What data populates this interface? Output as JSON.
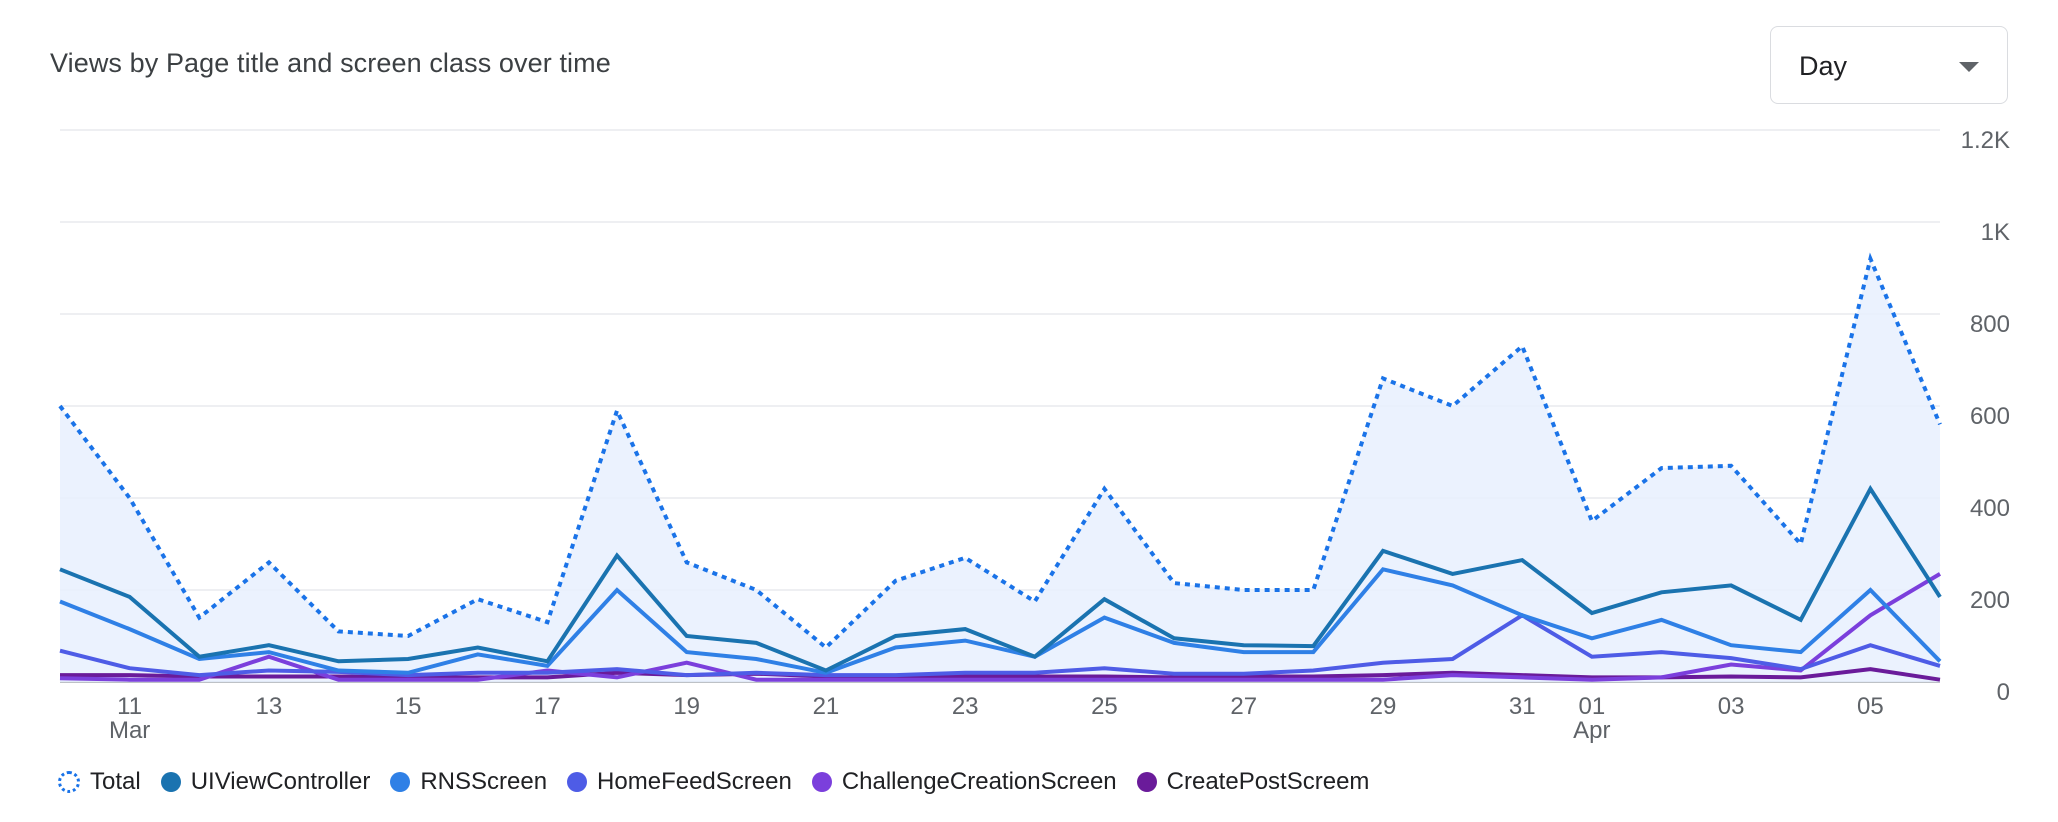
{
  "header": {
    "title": "Views by Page title and screen class over time"
  },
  "granularity": {
    "selected": "Day",
    "icon": "chevron-down-icon"
  },
  "chart_data": {
    "type": "line",
    "title": "Views by Page title and screen class over time",
    "xlabel": "",
    "ylabel": "",
    "ylim": [
      0,
      1200
    ],
    "y_ticks": [
      {
        "value": 0,
        "label": "0"
      },
      {
        "value": 200,
        "label": "200"
      },
      {
        "value": 400,
        "label": "400"
      },
      {
        "value": 600,
        "label": "600"
      },
      {
        "value": 800,
        "label": "800"
      },
      {
        "value": 1000,
        "label": "1K"
      },
      {
        "value": 1200,
        "label": "1.2K"
      }
    ],
    "x_ticks": [
      {
        "day_index": 1,
        "label": "11",
        "sublabel": "Mar"
      },
      {
        "day_index": 3,
        "label": "13",
        "sublabel": ""
      },
      {
        "day_index": 5,
        "label": "15",
        "sublabel": ""
      },
      {
        "day_index": 7,
        "label": "17",
        "sublabel": ""
      },
      {
        "day_index": 9,
        "label": "19",
        "sublabel": ""
      },
      {
        "day_index": 11,
        "label": "21",
        "sublabel": ""
      },
      {
        "day_index": 13,
        "label": "23",
        "sublabel": ""
      },
      {
        "day_index": 15,
        "label": "25",
        "sublabel": ""
      },
      {
        "day_index": 17,
        "label": "27",
        "sublabel": ""
      },
      {
        "day_index": 19,
        "label": "29",
        "sublabel": ""
      },
      {
        "day_index": 21,
        "label": "31",
        "sublabel": ""
      },
      {
        "day_index": 22,
        "label": "01",
        "sublabel": "Apr"
      },
      {
        "day_index": 24,
        "label": "03",
        "sublabel": ""
      },
      {
        "day_index": 26,
        "label": "05",
        "sublabel": ""
      }
    ],
    "days": [
      "Mar 10",
      "Mar 11",
      "Mar 12",
      "Mar 13",
      "Mar 14",
      "Mar 15",
      "Mar 16",
      "Mar 17",
      "Mar 18",
      "Mar 19",
      "Mar 20",
      "Mar 21",
      "Mar 22",
      "Mar 23",
      "Mar 24",
      "Mar 25",
      "Mar 26",
      "Mar 27",
      "Mar 28",
      "Mar 29",
      "Mar 30",
      "Mar 31",
      "Apr 01",
      "Apr 02",
      "Apr 03",
      "Apr 04",
      "Apr 05",
      "Apr 06"
    ],
    "series": [
      {
        "name": "Total",
        "color": "#1a73e8",
        "style": "dotted",
        "filled": true,
        "values": [
          600,
          400,
          140,
          260,
          110,
          100,
          180,
          130,
          590,
          260,
          200,
          75,
          220,
          270,
          175,
          420,
          215,
          200,
          200,
          660,
          600,
          730,
          350,
          465,
          470,
          300,
          920,
          560
        ]
      },
      {
        "name": "UIViewController",
        "color": "#1a73b0",
        "style": "solid",
        "values": [
          245,
          185,
          55,
          80,
          45,
          50,
          75,
          45,
          275,
          100,
          85,
          25,
          100,
          115,
          55,
          180,
          95,
          80,
          78,
          285,
          235,
          265,
          150,
          195,
          210,
          135,
          420,
          185
        ]
      },
      {
        "name": "RNSScreen",
        "color": "#2f80e6",
        "style": "solid",
        "values": [
          175,
          115,
          50,
          65,
          25,
          20,
          60,
          35,
          200,
          65,
          50,
          20,
          75,
          90,
          55,
          140,
          85,
          65,
          65,
          245,
          210,
          145,
          95,
          135,
          80,
          65,
          200,
          45
        ]
      },
      {
        "name": "HomeFeedScreen",
        "color": "#4e5ce6",
        "style": "solid",
        "values": [
          68,
          30,
          15,
          25,
          22,
          15,
          20,
          20,
          28,
          15,
          20,
          15,
          15,
          20,
          20,
          30,
          18,
          18,
          25,
          42,
          50,
          145,
          55,
          65,
          52,
          28,
          80,
          35
        ]
      },
      {
        "name": "ChallengeCreationScreen",
        "color": "#7b3fdc",
        "style": "solid",
        "values": [
          8,
          5,
          5,
          55,
          5,
          5,
          5,
          25,
          10,
          42,
          5,
          5,
          5,
          5,
          5,
          5,
          5,
          5,
          5,
          5,
          15,
          10,
          5,
          10,
          38,
          25,
          145,
          235
        ]
      },
      {
        "name": "CreatePostScreem",
        "color": "#6a1b9a",
        "style": "solid",
        "values": [
          15,
          15,
          12,
          12,
          12,
          10,
          10,
          10,
          20,
          15,
          18,
          12,
          12,
          12,
          12,
          12,
          10,
          12,
          12,
          15,
          20,
          15,
          10,
          10,
          12,
          10,
          28,
          5
        ]
      }
    ]
  }
}
